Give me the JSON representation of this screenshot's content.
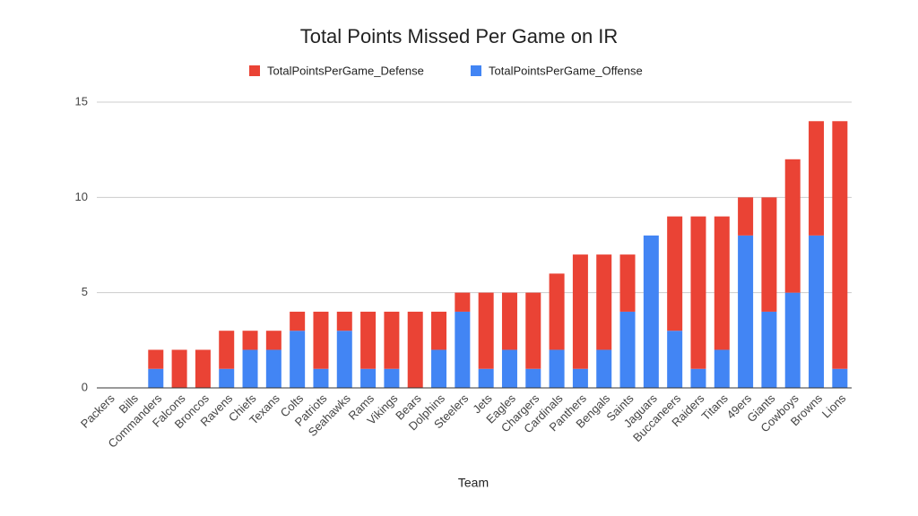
{
  "chart_data": {
    "type": "stacked_bar",
    "title": "Total Points Missed Per Game on IR",
    "x_label": "Team",
    "categories": [
      "Packers",
      "Bills",
      "Commanders",
      "Falcons",
      "Broncos",
      "Ravens",
      "Chiefs",
      "Texans",
      "Colts",
      "Patriots",
      "Seahawks",
      "Rams",
      "Vikings",
      "Bears",
      "Dolphins",
      "Steelers",
      "Jets",
      "Eagles",
      "Chargers",
      "Cardinals",
      "Panthers",
      "Bengals",
      "Saints",
      "Jaguars",
      "Buccaneers",
      "Raiders",
      "Titans",
      "49ers",
      "Giants",
      "Cowboys",
      "Browns",
      "Lions"
    ],
    "series": [
      {
        "name": "TotalPointsPerGame_Defense",
        "color": "#ea4335",
        "values": [
          0,
          0,
          1,
          2,
          2,
          2,
          1,
          1,
          1,
          3,
          1,
          3,
          3,
          4,
          2,
          1,
          4,
          3,
          4,
          4,
          6,
          5,
          3,
          0,
          6,
          8,
          7,
          2,
          6,
          7,
          6,
          13
        ]
      },
      {
        "name": "TotalPointsPerGame_Offense",
        "color": "#4285f4",
        "values": [
          0,
          0,
          1,
          0,
          0,
          1,
          2,
          2,
          3,
          1,
          3,
          1,
          1,
          0,
          2,
          4,
          1,
          2,
          1,
          2,
          1,
          2,
          4,
          8,
          3,
          1,
          2,
          8,
          4,
          5,
          8,
          1
        ]
      }
    ],
    "ylim": [
      0,
      15
    ],
    "yticks": [
      0,
      5,
      10,
      15
    ],
    "grid": true,
    "legend": "top"
  }
}
